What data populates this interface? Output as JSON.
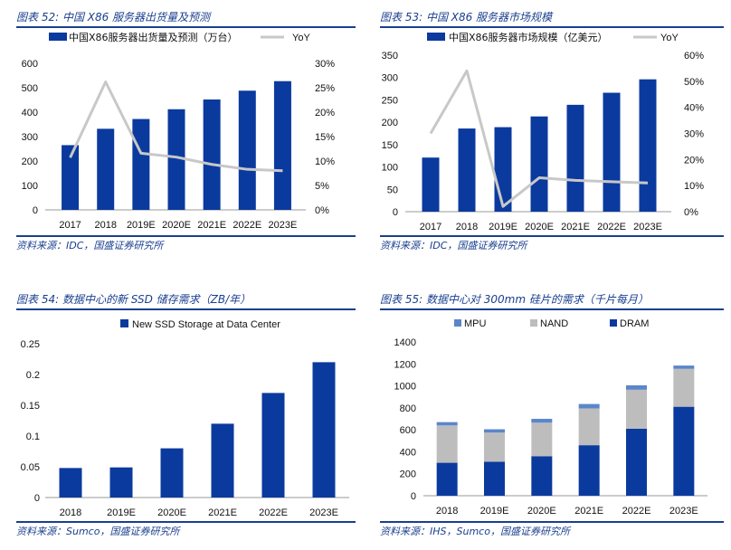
{
  "colors": {
    "bar": "#0b3a9e",
    "yoy": "#c8c8c8",
    "mpu": "#5b86c9",
    "nand": "#bdbdbd",
    "dram": "#0b3a9e",
    "title": "#1a3f8f"
  },
  "chart_data": [
    {
      "type": "bar",
      "panel_title": "图表 52:  中国 X86 服务器出货量及预测",
      "source": "资料来源：IDC，国盛证券研究所",
      "categories": [
        "2017",
        "2018",
        "2019E",
        "2020E",
        "2021E",
        "2022E",
        "2023E"
      ],
      "series": [
        {
          "name": "中国X86服务器出货量及预测（万台）",
          "kind": "bar",
          "axis": "left",
          "values": [
            265,
            332,
            372,
            412,
            452,
            488,
            527
          ]
        },
        {
          "name": "YoY",
          "kind": "line",
          "axis": "right",
          "values": [
            0.107,
            0.262,
            0.116,
            0.108,
            0.093,
            0.083,
            0.08
          ]
        }
      ],
      "y_left": {
        "min": 0,
        "max": 600,
        "ticks": [
          "0",
          "100",
          "200",
          "300",
          "400",
          "500",
          "600"
        ]
      },
      "y_right": {
        "min": 0,
        "max": 0.3,
        "ticks": [
          "0%",
          "5%",
          "10%",
          "15%",
          "20%",
          "25%",
          "30%"
        ]
      }
    },
    {
      "type": "bar",
      "panel_title": "图表 53:  中国 X86 服务器市场规模",
      "source": "资料来源：IDC，国盛证券研究所",
      "categories": [
        "2017",
        "2018",
        "2019E",
        "2020E",
        "2021E",
        "2022E",
        "2023E"
      ],
      "series": [
        {
          "name": "中国X86服务器市场规模（亿美元）",
          "kind": "bar",
          "axis": "left",
          "values": [
            121,
            186,
            189,
            213,
            239,
            266,
            296
          ]
        },
        {
          "name": "YoY",
          "kind": "line",
          "axis": "right",
          "values": [
            0.3,
            0.54,
            0.02,
            0.13,
            0.12,
            0.115,
            0.11
          ]
        }
      ],
      "y_left": {
        "min": 0,
        "max": 350,
        "ticks": [
          "0",
          "50",
          "100",
          "150",
          "200",
          "250",
          "300",
          "350"
        ]
      },
      "y_right": {
        "min": 0,
        "max": 0.6,
        "ticks": [
          "0%",
          "10%",
          "20%",
          "30%",
          "40%",
          "50%",
          "60%"
        ]
      }
    },
    {
      "type": "bar",
      "panel_title": "图表 54:  数据中心的新 SSD 储存需求（ZB/年）",
      "source": "资料来源：Sumco，国盛证券研究所",
      "categories": [
        "2018",
        "2019E",
        "2020E",
        "2021E",
        "2022E",
        "2023E"
      ],
      "series": [
        {
          "name": "New SSD Storage at Data Center",
          "kind": "bar",
          "axis": "left",
          "values": [
            0.048,
            0.049,
            0.08,
            0.12,
            0.17,
            0.22
          ]
        }
      ],
      "y_left": {
        "min": 0,
        "max": 0.25,
        "ticks": [
          "0",
          "0.05",
          "0.1",
          "0.15",
          "0.2",
          "0.25"
        ]
      }
    },
    {
      "type": "stacked-bar",
      "panel_title": "图表 55:  数据中心对 300mm 硅片的需求（千片每月）",
      "source": "资料来源：IHS，Sumco，国盛证券研究所",
      "categories": [
        "2018",
        "2019E",
        "2020E",
        "2021E",
        "2022E",
        "2023E"
      ],
      "series": [
        {
          "name": "DRAM",
          "values": [
            300,
            310,
            360,
            460,
            610,
            810
          ]
        },
        {
          "name": "NAND",
          "values": [
            340,
            265,
            305,
            335,
            355,
            345
          ]
        },
        {
          "name": "MPU",
          "values": [
            30,
            30,
            35,
            40,
            40,
            30
          ]
        }
      ],
      "legend_order": [
        "MPU",
        "NAND",
        "DRAM"
      ],
      "y_left": {
        "min": 0,
        "max": 1400,
        "ticks": [
          "0",
          "200",
          "400",
          "600",
          "800",
          "1000",
          "1200",
          "1400"
        ]
      }
    }
  ]
}
